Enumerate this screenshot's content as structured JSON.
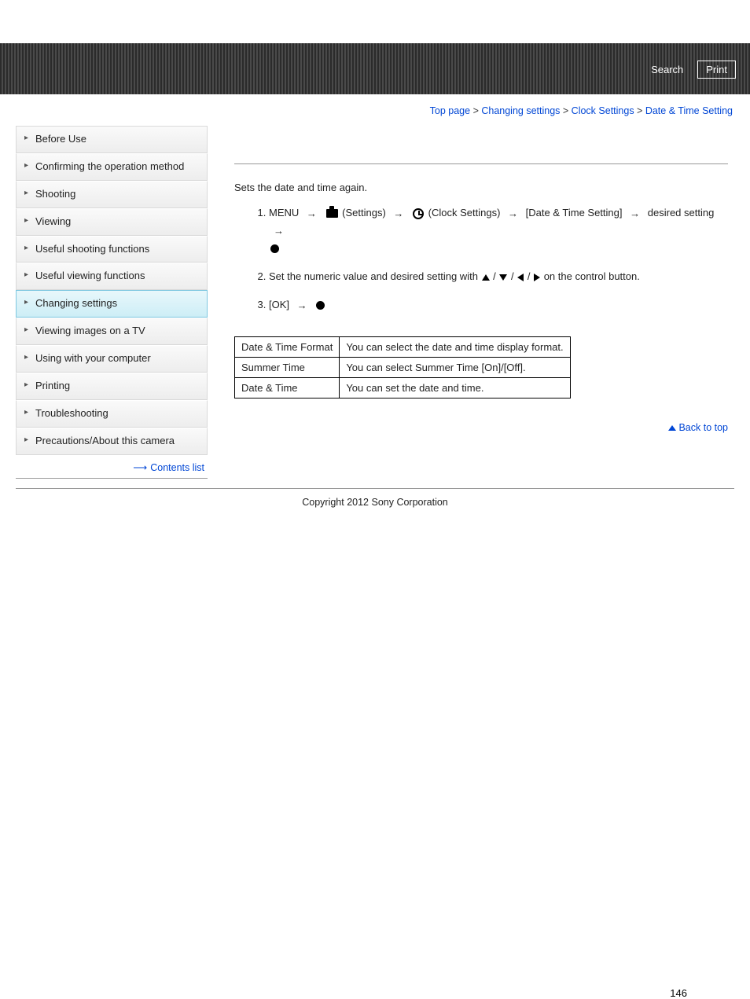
{
  "header": {
    "search": "Search",
    "print": "Print"
  },
  "breadcrumb": {
    "items": [
      "Top page",
      "Changing settings",
      "Clock Settings",
      "Date & Time Setting"
    ],
    "sep": " > "
  },
  "sidebar": {
    "items": [
      "Before Use",
      "Confirming the operation method",
      "Shooting",
      "Viewing",
      "Useful shooting functions",
      "Useful viewing functions",
      "Changing settings",
      "Viewing images on a TV",
      "Using with your computer",
      "Printing",
      "Troubleshooting",
      "Precautions/About this camera"
    ],
    "active_index": 6,
    "contents_list": "Contents list"
  },
  "main": {
    "intro": "Sets the date and time again.",
    "step1": {
      "menu": "MENU",
      "settings_label": "(Settings)",
      "clock_label": "(Clock Settings)",
      "date_time": "[Date & Time Setting]",
      "desired": "desired setting"
    },
    "step2_pre": "Set the numeric value and desired setting with ",
    "step2_post": " on the control button.",
    "step3_ok": "[OK]",
    "table": {
      "rows": [
        [
          "Date & Time Format",
          "You can select the date and time display format."
        ],
        [
          "Summer Time",
          "You can select Summer Time [On]/[Off]."
        ],
        [
          "Date & Time",
          "You can set the date and time."
        ]
      ]
    },
    "back_to_top": "Back to top"
  },
  "footer": {
    "copyright": "Copyright 2012 Sony Corporation",
    "page_num": "146"
  }
}
